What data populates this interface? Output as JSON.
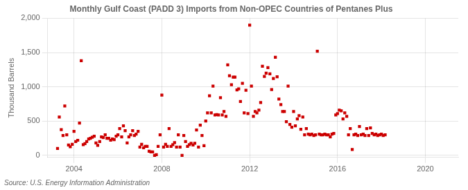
{
  "chart_data": {
    "type": "scatter",
    "title": "Monthly Gulf Coast (PADD 3) Imports from Non-OPEC Countries of Pentanes Plus",
    "ylabel": "Thousand Barrels",
    "source": "Source: U.S. Energy Information Administration",
    "color": "#cc0000",
    "marker": "square",
    "grid": true,
    "xlim": [
      2002.8,
      2021.5
    ],
    "ylim": [
      -30,
      2000
    ],
    "xticks": [
      2004,
      2008,
      2012,
      2016,
      2020
    ],
    "yticks": [
      0,
      500,
      {
        "value": 1000,
        "label": "1,000"
      },
      {
        "value": 1500,
        "label": "1,500"
      },
      {
        "value": 2000,
        "label": "2,000"
      }
    ],
    "x": [
      2003.25,
      2003.33,
      2003.42,
      2003.5,
      2003.58,
      2003.67,
      2003.75,
      2003.83,
      2003.92,
      2004.0,
      2004.08,
      2004.17,
      2004.25,
      2004.33,
      2004.42,
      2004.5,
      2004.58,
      2004.67,
      2004.75,
      2004.83,
      2004.92,
      2005.0,
      2005.08,
      2005.17,
      2005.25,
      2005.33,
      2005.42,
      2005.5,
      2005.58,
      2005.67,
      2005.75,
      2005.83,
      2005.92,
      2006.0,
      2006.08,
      2006.17,
      2006.25,
      2006.33,
      2006.42,
      2006.5,
      2006.58,
      2006.67,
      2006.75,
      2006.83,
      2006.92,
      2007.0,
      2007.08,
      2007.17,
      2007.25,
      2007.33,
      2007.42,
      2007.5,
      2007.58,
      2007.67,
      2007.75,
      2007.83,
      2007.92,
      2008.0,
      2008.08,
      2008.17,
      2008.25,
      2008.33,
      2008.42,
      2008.5,
      2008.58,
      2008.67,
      2008.75,
      2008.83,
      2008.92,
      2009.0,
      2009.08,
      2009.17,
      2009.25,
      2009.33,
      2009.42,
      2009.5,
      2009.58,
      2009.67,
      2009.75,
      2009.83,
      2009.92,
      2010.0,
      2010.08,
      2010.17,
      2010.25,
      2010.33,
      2010.42,
      2010.5,
      2010.58,
      2010.67,
      2010.75,
      2010.83,
      2010.92,
      2011.0,
      2011.08,
      2011.17,
      2011.25,
      2011.33,
      2011.42,
      2011.5,
      2011.58,
      2011.67,
      2011.75,
      2011.83,
      2011.92,
      2012.0,
      2012.08,
      2012.17,
      2012.25,
      2012.33,
      2012.42,
      2012.5,
      2012.58,
      2012.67,
      2012.75,
      2012.83,
      2012.92,
      2013.0,
      2013.08,
      2013.17,
      2013.25,
      2013.33,
      2013.42,
      2013.5,
      2013.58,
      2013.67,
      2013.75,
      2013.83,
      2013.92,
      2014.0,
      2014.08,
      2014.17,
      2014.25,
      2014.33,
      2014.42,
      2014.5,
      2014.58,
      2014.67,
      2014.75,
      2014.83,
      2014.92,
      2015.0,
      2015.08,
      2015.17,
      2015.25,
      2015.33,
      2015.42,
      2015.5,
      2015.58,
      2015.67,
      2015.75,
      2015.83,
      2015.92,
      2016.0,
      2016.08,
      2016.17,
      2016.25,
      2016.33,
      2016.42,
      2016.5,
      2016.58,
      2016.67,
      2016.75,
      2016.83,
      2016.92,
      2017.0,
      2017.08,
      2017.17,
      2017.25,
      2017.33,
      2017.42,
      2017.5,
      2017.58,
      2017.67,
      2017.75,
      2017.83,
      2017.92,
      2018.0,
      2018.08,
      2018.17
    ],
    "values": [
      100,
      560,
      375,
      290,
      720,
      300,
      150,
      125,
      160,
      350,
      200,
      220,
      470,
      1380,
      155,
      170,
      200,
      240,
      250,
      265,
      280,
      180,
      145,
      200,
      270,
      260,
      300,
      250,
      250,
      220,
      240,
      230,
      280,
      300,
      390,
      270,
      430,
      360,
      180,
      270,
      300,
      360,
      290,
      310,
      350,
      120,
      160,
      110,
      130,
      130,
      60,
      50,
      50,
      0,
      10,
      130,
      300,
      880,
      120,
      160,
      130,
      390,
      130,
      155,
      185,
      120,
      300,
      120,
      0,
      290,
      200,
      130,
      155,
      175,
      150,
      175,
      370,
      120,
      440,
      290,
      140,
      500,
      620,
      870,
      620,
      1010,
      590,
      595,
      590,
      840,
      590,
      640,
      570,
      1320,
      1160,
      1030,
      1140,
      1140,
      955,
      970,
      785,
      1050,
      620,
      950,
      610,
      1900,
      1010,
      570,
      640,
      620,
      660,
      770,
      1300,
      1150,
      1200,
      1280,
      1190,
      960,
      1120,
      1430,
      1145,
      820,
      740,
      640,
      640,
      490,
      1010,
      450,
      410,
      640,
      430,
      530,
      580,
      380,
      560,
      300,
      390,
      310,
      300,
      310,
      290,
      300,
      1520,
      310,
      300,
      300,
      310,
      300,
      300,
      270,
      310,
      320,
      590,
      610,
      660,
      650,
      530,
      620,
      570,
      300,
      390,
      85,
      300,
      310,
      290,
      420,
      300,
      310,
      290,
      390,
      290,
      400,
      320,
      300,
      310,
      290,
      300,
      310,
      290,
      300
    ]
  }
}
